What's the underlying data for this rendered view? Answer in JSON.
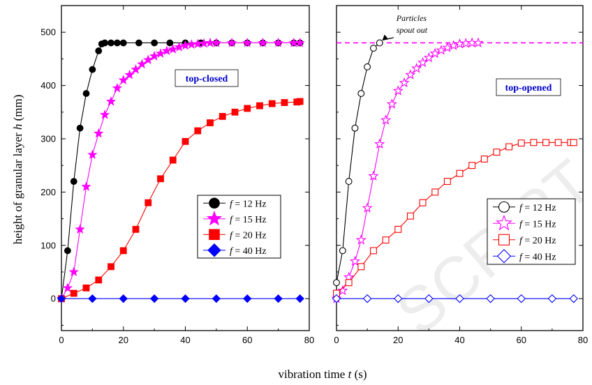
{
  "figure": {
    "ylabel_prefix": "height of granular layer ",
    "ylabel_var": "h",
    "ylabel_suffix": " (mm)",
    "xlabel_prefix": "vibration time ",
    "xlabel_var": "t",
    "xlabel_suffix": " (s)",
    "watermark": "SCRIPT"
  },
  "chart_data": [
    {
      "type": "line",
      "panel_label": "top-closed",
      "panel_label_color": "#0000cc",
      "xlim": [
        0,
        80
      ],
      "ylim": [
        -60,
        550
      ],
      "x_ticks": [
        0,
        20,
        40,
        60,
        80
      ],
      "y_ticks": [
        0,
        100,
        200,
        300,
        400,
        500
      ],
      "legend_position": "right-middle",
      "series": [
        {
          "name": "f = 12 Hz",
          "var": "f",
          "label_rest": " = 12 Hz",
          "color": "#000000",
          "marker": "circle",
          "filled": true,
          "x": [
            0,
            2,
            4,
            6,
            8,
            10,
            12,
            13,
            14,
            16,
            18,
            20,
            25,
            30,
            35,
            40,
            45,
            50,
            55,
            60,
            65,
            70,
            75,
            77
          ],
          "y": [
            0,
            90,
            220,
            320,
            385,
            430,
            465,
            478,
            480,
            480,
            480,
            480,
            480,
            480,
            480,
            480,
            480,
            480,
            480,
            480,
            480,
            480,
            480,
            480
          ]
        },
        {
          "name": "f = 15 Hz",
          "var": "f",
          "label_rest": " = 15 Hz",
          "color": "#ff00ff",
          "marker": "star",
          "filled": true,
          "x": [
            0,
            2,
            4,
            6,
            8,
            10,
            12,
            14,
            16,
            18,
            20,
            22,
            24,
            26,
            28,
            30,
            32,
            34,
            36,
            38,
            40,
            42,
            44,
            46,
            48,
            50,
            55,
            60,
            65,
            70,
            75,
            77
          ],
          "y": [
            0,
            20,
            50,
            130,
            210,
            270,
            310,
            345,
            370,
            395,
            410,
            420,
            430,
            440,
            448,
            455,
            460,
            465,
            468,
            472,
            475,
            477,
            478,
            479,
            480,
            480,
            480,
            480,
            480,
            480,
            480,
            480
          ]
        },
        {
          "name": "f = 20 Hz",
          "var": "f",
          "label_rest": " = 20 Hz",
          "color": "#ff0000",
          "marker": "square",
          "filled": true,
          "x": [
            0,
            4,
            8,
            12,
            16,
            20,
            24,
            28,
            32,
            36,
            40,
            44,
            48,
            52,
            56,
            60,
            64,
            68,
            72,
            76,
            77
          ],
          "y": [
            0,
            10,
            20,
            35,
            60,
            90,
            130,
            180,
            225,
            260,
            295,
            315,
            330,
            342,
            350,
            357,
            362,
            366,
            368,
            369,
            370
          ]
        },
        {
          "name": "f = 40 Hz",
          "var": "f",
          "label_rest": " = 40 Hz",
          "color": "#0000ff",
          "marker": "diamond",
          "filled": true,
          "x": [
            0,
            10,
            20,
            30,
            40,
            50,
            60,
            70,
            77
          ],
          "y": [
            0,
            0,
            0,
            0,
            0,
            0,
            0,
            0,
            0
          ]
        }
      ]
    },
    {
      "type": "line",
      "panel_label": "top-opened",
      "panel_label_color": "#0000cc",
      "xlim": [
        0,
        80
      ],
      "ylim": [
        -60,
        550
      ],
      "x_ticks": [
        0,
        20,
        40,
        60,
        80
      ],
      "y_ticks": [
        0,
        100,
        200,
        300,
        400,
        500
      ],
      "legend_position": "right-lower",
      "reference_line": {
        "y": 480,
        "color": "#ff00ff",
        "style": "dashed"
      },
      "annotation": {
        "line1": "Particles",
        "line2": "spout out",
        "arrow_to_x": 14,
        "arrow_to_y": 480
      },
      "series": [
        {
          "name": "f = 12 Hz",
          "var": "f",
          "label_rest": " = 12 Hz",
          "color": "#000000",
          "marker": "circle",
          "filled": false,
          "x": [
            0,
            2,
            4,
            6,
            8,
            10,
            12,
            14
          ],
          "y": [
            30,
            90,
            220,
            320,
            385,
            435,
            470,
            480
          ]
        },
        {
          "name": "f = 15 Hz",
          "var": "f",
          "label_rest": " = 15 Hz",
          "color": "#ff00ff",
          "marker": "star",
          "filled": false,
          "x": [
            0,
            2,
            4,
            6,
            8,
            10,
            12,
            14,
            16,
            18,
            20,
            22,
            24,
            26,
            28,
            30,
            32,
            34,
            36,
            38,
            40,
            42,
            44,
            46
          ],
          "y": [
            0,
            15,
            40,
            70,
            110,
            170,
            230,
            290,
            335,
            365,
            390,
            405,
            420,
            432,
            443,
            452,
            460,
            466,
            471,
            475,
            478,
            479,
            480,
            480
          ]
        },
        {
          "name": "f = 20 Hz",
          "var": "f",
          "label_rest": " = 20 Hz",
          "color": "#ff0000",
          "marker": "square",
          "filled": false,
          "x": [
            0,
            4,
            8,
            12,
            16,
            20,
            24,
            28,
            32,
            36,
            40,
            44,
            48,
            52,
            56,
            60,
            64,
            68,
            72,
            76,
            77
          ],
          "y": [
            10,
            30,
            60,
            90,
            110,
            130,
            155,
            180,
            200,
            220,
            235,
            250,
            262,
            275,
            285,
            292,
            293,
            293,
            293,
            293,
            293
          ]
        },
        {
          "name": "f = 40 Hz",
          "var": "f",
          "label_rest": " = 40 Hz",
          "color": "#0000ff",
          "marker": "diamond",
          "filled": false,
          "x": [
            0,
            10,
            20,
            30,
            40,
            50,
            60,
            70,
            77
          ],
          "y": [
            0,
            0,
            0,
            0,
            0,
            0,
            0,
            0,
            0
          ]
        }
      ]
    }
  ]
}
